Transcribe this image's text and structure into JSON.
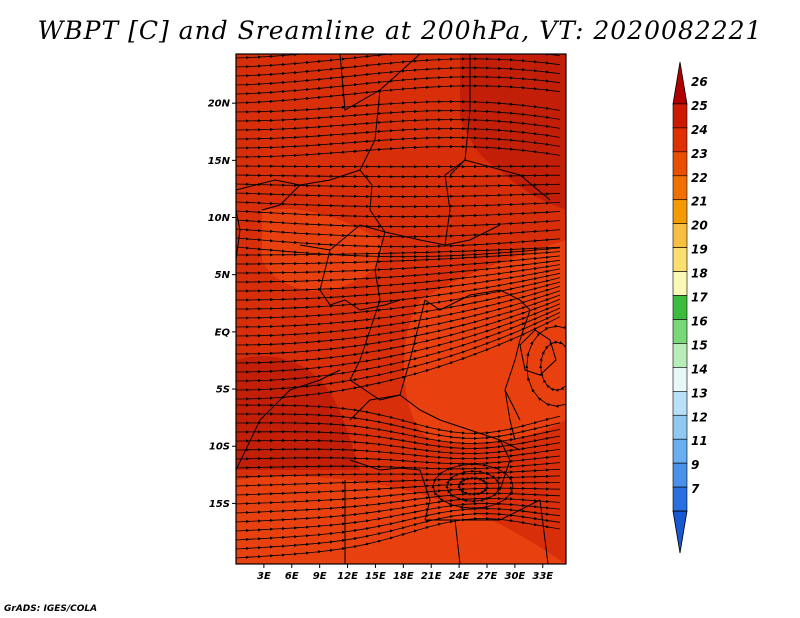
{
  "title": "WBPT [C] and Sreamline at 200hPa, VT: 2020082221",
  "credit": "GrADS: IGES/COLA",
  "axes": {
    "lat_ticks": [
      "20N",
      "15N",
      "10N",
      "5N",
      "EQ",
      "5S",
      "10S",
      "15S"
    ],
    "lat_values": [
      20,
      15,
      10,
      5,
      0,
      -5,
      -10,
      -15
    ],
    "lon_ticks": [
      "3E",
      "6E",
      "9E",
      "12E",
      "15E",
      "18E",
      "21E",
      "24E",
      "27E",
      "30E",
      "33E"
    ],
    "lon_values": [
      3,
      6,
      9,
      12,
      15,
      18,
      21,
      24,
      27,
      30,
      33
    ]
  },
  "colorbar": {
    "labels": [
      "26",
      "25",
      "24",
      "23",
      "22",
      "21",
      "20",
      "19",
      "18",
      "17",
      "16",
      "15",
      "14",
      "13",
      "12",
      "11",
      "9",
      "7"
    ],
    "colors": [
      "#b00000",
      "#cc1a00",
      "#e03000",
      "#e85000",
      "#f07000",
      "#f59a00",
      "#f8c040",
      "#fbe070",
      "#fcf8b8",
      "#3cbc3c",
      "#78d878",
      "#b8ecb8",
      "#e8f8f8",
      "#b8e0f8",
      "#90c8f0",
      "#68aef0",
      "#4890e8",
      "#2870e0",
      "#1858d0"
    ]
  },
  "map_colors": {
    "base": "#d82e0a",
    "light": "#e8400e",
    "dark": "#c31e08"
  }
}
